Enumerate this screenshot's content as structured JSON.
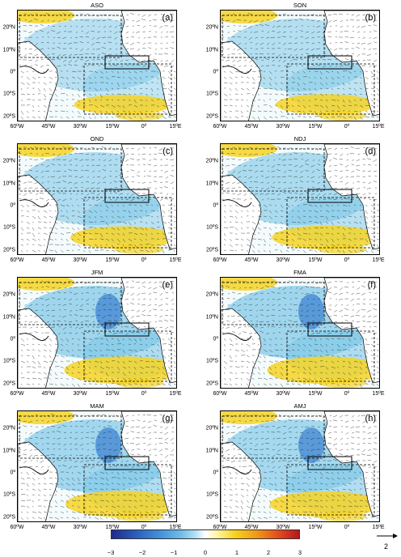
{
  "colors": {
    "anomaly_negative": "#7ec8e8",
    "anomaly_strong_negative": "#3a7fd0",
    "anomaly_positive": "#f5d425",
    "land_outline": "#000000",
    "arrows": "#222222"
  },
  "latitude_labels": [
    "20ºN",
    "10ºN",
    "0º",
    "10ºS",
    "20ºS"
  ],
  "longitude_labels": [
    "60ºW",
    "45ºW",
    "30ºW",
    "15ºW",
    "0º",
    "15ºE"
  ],
  "panels": [
    {
      "title": "ASO",
      "label": "(a)",
      "anomaly_level": 0.35
    },
    {
      "title": "SON",
      "label": "(b)",
      "anomaly_level": 0.4
    },
    {
      "title": "OND",
      "label": "(c)",
      "anomaly_level": 0.5
    },
    {
      "title": "NDJ",
      "label": "(d)",
      "anomaly_level": 0.55
    },
    {
      "title": "JFM",
      "label": "(e)",
      "anomaly_level": 0.75
    },
    {
      "title": "FMA",
      "label": "(f)",
      "anomaly_level": 0.75
    },
    {
      "title": "MAM",
      "label": "(g)",
      "anomaly_level": 0.7
    },
    {
      "title": "AMJ",
      "label": "(h)",
      "anomaly_level": 0.65
    }
  ],
  "colorbar": {
    "min": -3,
    "max": 3,
    "ticks": [
      "−3",
      "−2",
      "−1",
      "0",
      "1",
      "2",
      "3"
    ]
  },
  "reference_vector": {
    "label": "2"
  }
}
